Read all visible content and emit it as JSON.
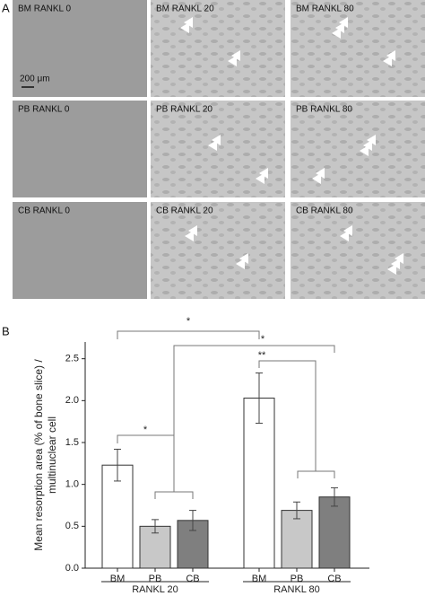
{
  "panel_labels": [
    "A",
    "B"
  ],
  "images": [
    "BM RANKL 0",
    "BM RANKL 20",
    "BM RANKL 80",
    "PB RANKL 0",
    "PB RANKL 20",
    "PB RANKL 80",
    "CB RANKL 0",
    "CB RANKL 20",
    "CB RANKL 80"
  ],
  "scale_bar": "200 μm",
  "chart_data": {
    "type": "bar",
    "ylabel": [
      "Mean resorption area (% of bone slice) /",
      "multinuclear cell"
    ],
    "categories": [
      "BM",
      "PB",
      "CB",
      "BM",
      "PB",
      "CB"
    ],
    "groups": [
      "RANKL 20",
      "RANKL 80"
    ],
    "values": [
      1.23,
      0.5,
      0.57,
      2.03,
      0.69,
      0.85
    ],
    "errors": [
      0.19,
      0.08,
      0.12,
      0.3,
      0.1,
      0.11
    ],
    "colors": [
      "#ffffff",
      "#c8c8c8",
      "#7f7f7f",
      "#ffffff",
      "#c8c8c8",
      "#7f7f7f"
    ],
    "ylim": [
      0,
      2.7
    ],
    "yticks": [
      {
        "value": 0,
        "label": "0.0"
      },
      {
        "value": 0.5,
        "label": "0.5"
      },
      {
        "value": 1,
        "label": "1.0"
      },
      {
        "value": 1.5,
        "label": "1.5"
      },
      {
        "value": 2,
        "label": "2.0"
      },
      {
        "value": 2.5,
        "label": "2.5"
      }
    ],
    "annotations": [
      "*",
      "*",
      "**",
      "*"
    ]
  }
}
